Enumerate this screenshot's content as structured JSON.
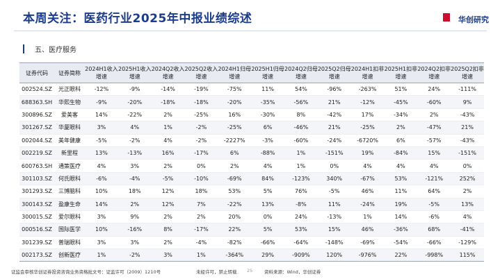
{
  "header": {
    "title": "本周关注：医药行业2025年中报业绩综述",
    "logo": "华创研究"
  },
  "section": "五、医疗服务",
  "table": {
    "columns": [
      [
        "证券代码"
      ],
      [
        "证券简称"
      ],
      [
        "2024H1收入",
        "增速"
      ],
      [
        "2025H1收入",
        "增速"
      ],
      [
        "2024Q2收入",
        "增速"
      ],
      [
        "2025Q2收入",
        "增速"
      ],
      [
        "2024H1归母",
        "增速"
      ],
      [
        "2025H1归母",
        "增速"
      ],
      [
        "2024Q2归母",
        "增速"
      ],
      [
        "2025Q2归母",
        "增速"
      ],
      [
        "2024H1扣非",
        "增速"
      ],
      [
        "2025H1扣非",
        "增速"
      ],
      [
        "2024Q2扣非",
        "增速"
      ],
      [
        "2025Q2扣非",
        "增速"
      ]
    ],
    "rows": [
      [
        "002524.SZ",
        "光正眼科",
        "-12%",
        "-9%",
        "-14%",
        "-19%",
        "-75%",
        "11%",
        "54%",
        "-96%",
        "-263%",
        "51%",
        "24%",
        "-111%"
      ],
      [
        "688363.SH",
        "华熙生物",
        "-9%",
        "-20%",
        "-18%",
        "-18%",
        "-20%",
        "-35%",
        "-56%",
        "21%",
        "-12%",
        "-45%",
        "-60%",
        "9%"
      ],
      [
        "300896.SZ",
        "爱美客",
        "14%",
        "-22%",
        "2%",
        "-25%",
        "16%",
        "-30%",
        "8%",
        "-42%",
        "17%",
        "-34%",
        "2%",
        "-43%"
      ],
      [
        "301267.SZ",
        "华厦眼科",
        "3%",
        "4%",
        "1%",
        "-2%",
        "-25%",
        "6%",
        "-46%",
        "21%",
        "-25%",
        "2%",
        "-47%",
        "21%"
      ],
      [
        "002044.SZ",
        "美年健康",
        "-5%",
        "-2%",
        "4%",
        "-2%",
        "-2227%",
        "-3%",
        "-60%",
        "-24%",
        "-6720%",
        "6%",
        "-57%",
        "-43%"
      ],
      [
        "002219.SZ",
        "新里程",
        "13%",
        "-13%",
        "16%",
        "-17%",
        "6%",
        "-88%",
        "1%",
        "-151%",
        "19%",
        "-84%",
        "15%",
        "-151%"
      ],
      [
        "600763.SH",
        "通策医疗",
        "4%",
        "3%",
        "2%",
        "0%",
        "2%",
        "4%",
        "1%",
        "0%",
        "4%",
        "4%",
        "4%",
        "0%"
      ],
      [
        "301103.SZ",
        "何氏眼科",
        "-6%",
        "-4%",
        "-5%",
        "-10%",
        "-69%",
        "84%",
        "-123%",
        "340%",
        "-67%",
        "53%",
        "-121%",
        "252%"
      ],
      [
        "301293.SZ",
        "三博脑科",
        "10%",
        "18%",
        "12%",
        "18%",
        "53%",
        "5%",
        "76%",
        "-5%",
        "46%",
        "11%",
        "64%",
        "2%"
      ],
      [
        "300143.SZ",
        "盈康生命",
        "14%",
        "2%",
        "12%",
        "7%",
        "-22%",
        "13%",
        "-8%",
        "11%",
        "-24%",
        "19%",
        "-5%",
        "13%"
      ],
      [
        "300015.SZ",
        "爱尔眼科",
        "3%",
        "9%",
        "2%",
        "2%",
        "20%",
        "0%",
        "24%",
        "-13%",
        "1%",
        "14%",
        "-6%",
        "4%"
      ],
      [
        "000516.SZ",
        "国际医学",
        "10%",
        "-16%",
        "8%",
        "-17%",
        "22%",
        "5%",
        "53%",
        "15%",
        "46%",
        "-36%",
        "68%",
        "-41%"
      ],
      [
        "301239.SZ",
        "普瑞眼科",
        "3%",
        "3%",
        "2%",
        "-4%",
        "-82%",
        "-66%",
        "-64%",
        "-148%",
        "-69%",
        "-54%",
        "-66%",
        "-129%"
      ],
      [
        "002173.SZ",
        "创新医疗",
        "1%",
        "-2%",
        "3%",
        "1%",
        "-364%",
        "29%",
        "-909%",
        "120%",
        "-976%",
        "22%",
        "-998%",
        "115%"
      ]
    ]
  },
  "footer": {
    "license": "证监会审核华创证券投资咨询业务资格批文号：证监许可（2009）1210号",
    "notice": "未经许可，禁止转载",
    "page": "25",
    "source": "资料来源：Wind，华创证券"
  }
}
